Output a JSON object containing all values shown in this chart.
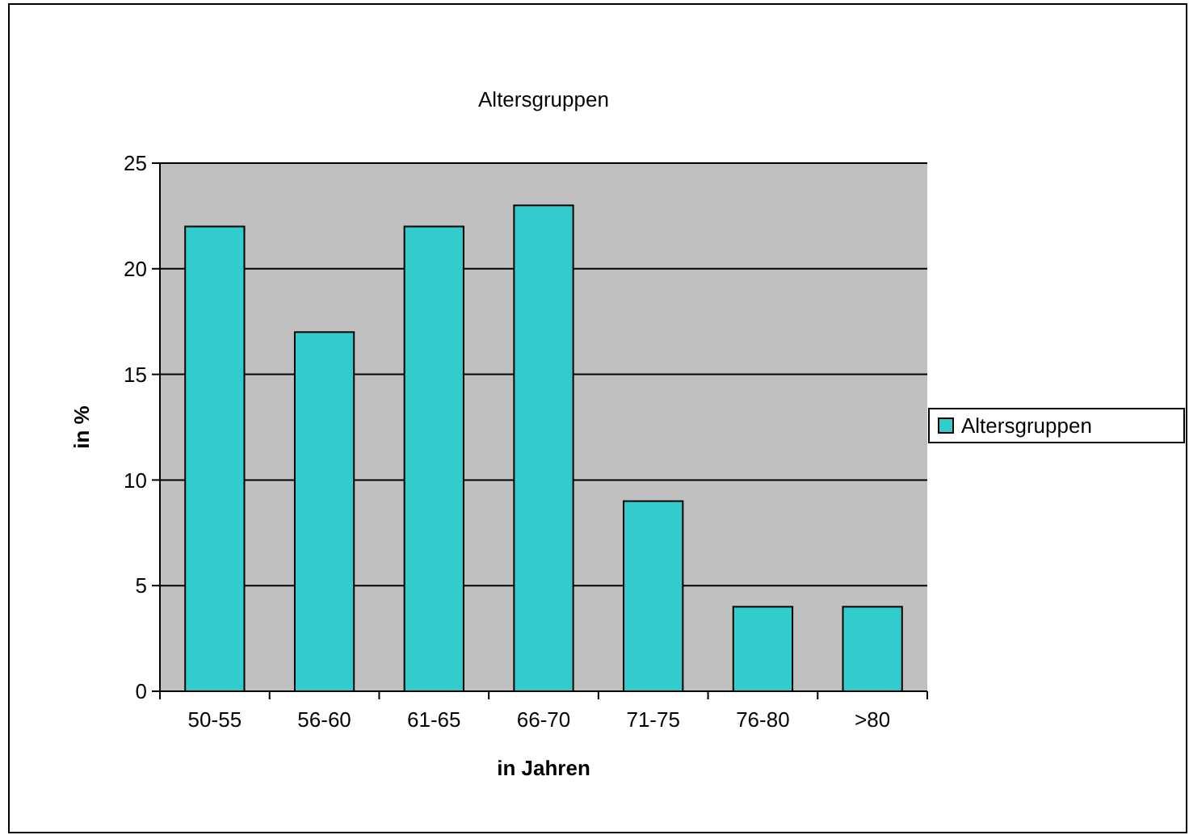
{
  "chart_data": {
    "type": "bar",
    "title": "Altersgruppen",
    "xlabel": "in Jahren",
    "ylabel": "in %",
    "categories": [
      "50-55",
      "56-60",
      "61-65",
      "66-70",
      "71-75",
      "76-80",
      ">80"
    ],
    "series": [
      {
        "name": "Altersgruppen",
        "color": "#33cccc",
        "values": [
          22,
          17,
          22,
          23,
          9,
          4,
          4
        ]
      }
    ],
    "ylim": [
      0,
      25
    ],
    "yticks": [
      0,
      5,
      10,
      15,
      20,
      25
    ],
    "grid": "y",
    "legend": "right"
  }
}
